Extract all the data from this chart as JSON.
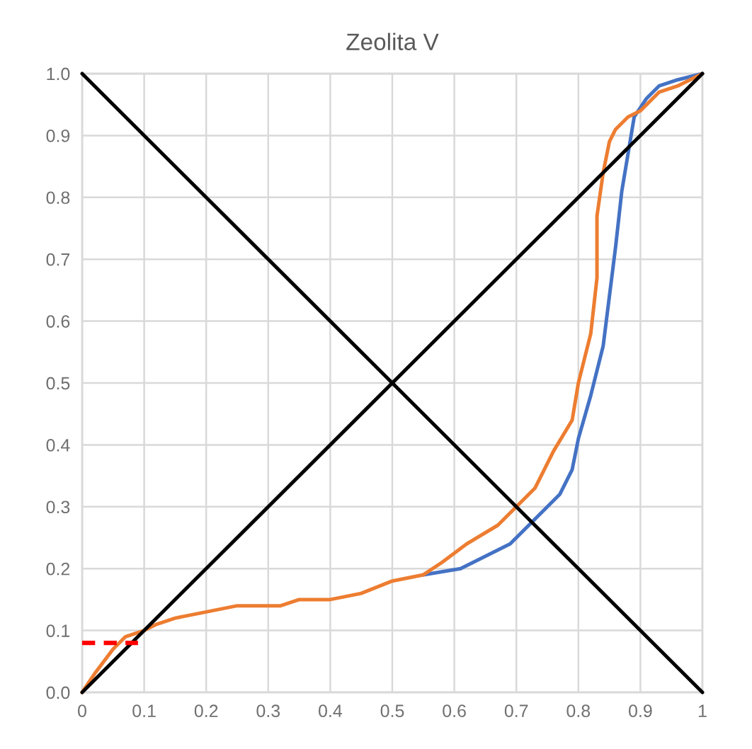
{
  "chart_data": {
    "type": "line",
    "title": "Zeolita V",
    "xlim": [
      0,
      1
    ],
    "ylim": [
      0,
      1
    ],
    "xticks": [
      0,
      0.1,
      0.2,
      0.3,
      0.4,
      0.5,
      0.6,
      0.7,
      0.8,
      0.9,
      1
    ],
    "yticks": [
      {
        "value": 0,
        "label": "0.0"
      },
      0.1,
      0.2,
      0.3,
      0.4,
      0.5,
      0.6,
      0.7,
      0.8,
      0.9,
      {
        "value": 1,
        "label": "1.0"
      }
    ],
    "grid": true,
    "series": [
      {
        "color": "#4472c4",
        "x": [
          0.55,
          0.61,
          0.65,
          0.69,
          0.73,
          0.77,
          0.79,
          0.8,
          0.82,
          0.84,
          0.85,
          0.86,
          0.87,
          0.88,
          0.89,
          0.91,
          0.93,
          0.96,
          1
        ],
        "values": [
          0.19,
          0.2,
          0.22,
          0.24,
          0.28,
          0.32,
          0.36,
          0.41,
          0.48,
          0.56,
          0.64,
          0.72,
          0.81,
          0.87,
          0.93,
          0.96,
          0.98,
          0.99,
          1
        ]
      },
      {
        "color": "#ed7d31",
        "x": [
          0,
          0.02,
          0.05,
          0.07,
          0.1,
          0.12,
          0.15,
          0.2,
          0.25,
          0.27,
          0.32,
          0.35,
          0.4,
          0.45,
          0.5,
          0.55,
          0.58,
          0.62,
          0.67,
          0.7,
          0.73,
          0.76,
          0.79,
          0.8,
          0.82,
          0.83,
          0.83,
          0.84,
          0.85,
          0.86,
          0.88,
          0.9,
          0.93,
          0.96,
          1
        ],
        "values": [
          0,
          0.03,
          0.07,
          0.09,
          0.1,
          0.11,
          0.12,
          0.13,
          0.14,
          0.14,
          0.14,
          0.15,
          0.15,
          0.16,
          0.18,
          0.19,
          0.21,
          0.24,
          0.27,
          0.3,
          0.33,
          0.39,
          0.44,
          0.5,
          0.58,
          0.67,
          0.77,
          0.84,
          0.89,
          0.91,
          0.93,
          0.94,
          0.97,
          0.98,
          1
        ]
      },
      {
        "color": "#000000",
        "x": [
          0,
          1
        ],
        "values": [
          0,
          1
        ]
      },
      {
        "color": "#000000",
        "x": [
          0,
          1
        ],
        "values": [
          1,
          0
        ]
      },
      {
        "color": "#ff0000",
        "line_style": "dashed",
        "x": [
          0,
          0.09
        ],
        "values": [
          0.08,
          0.08
        ]
      }
    ]
  }
}
